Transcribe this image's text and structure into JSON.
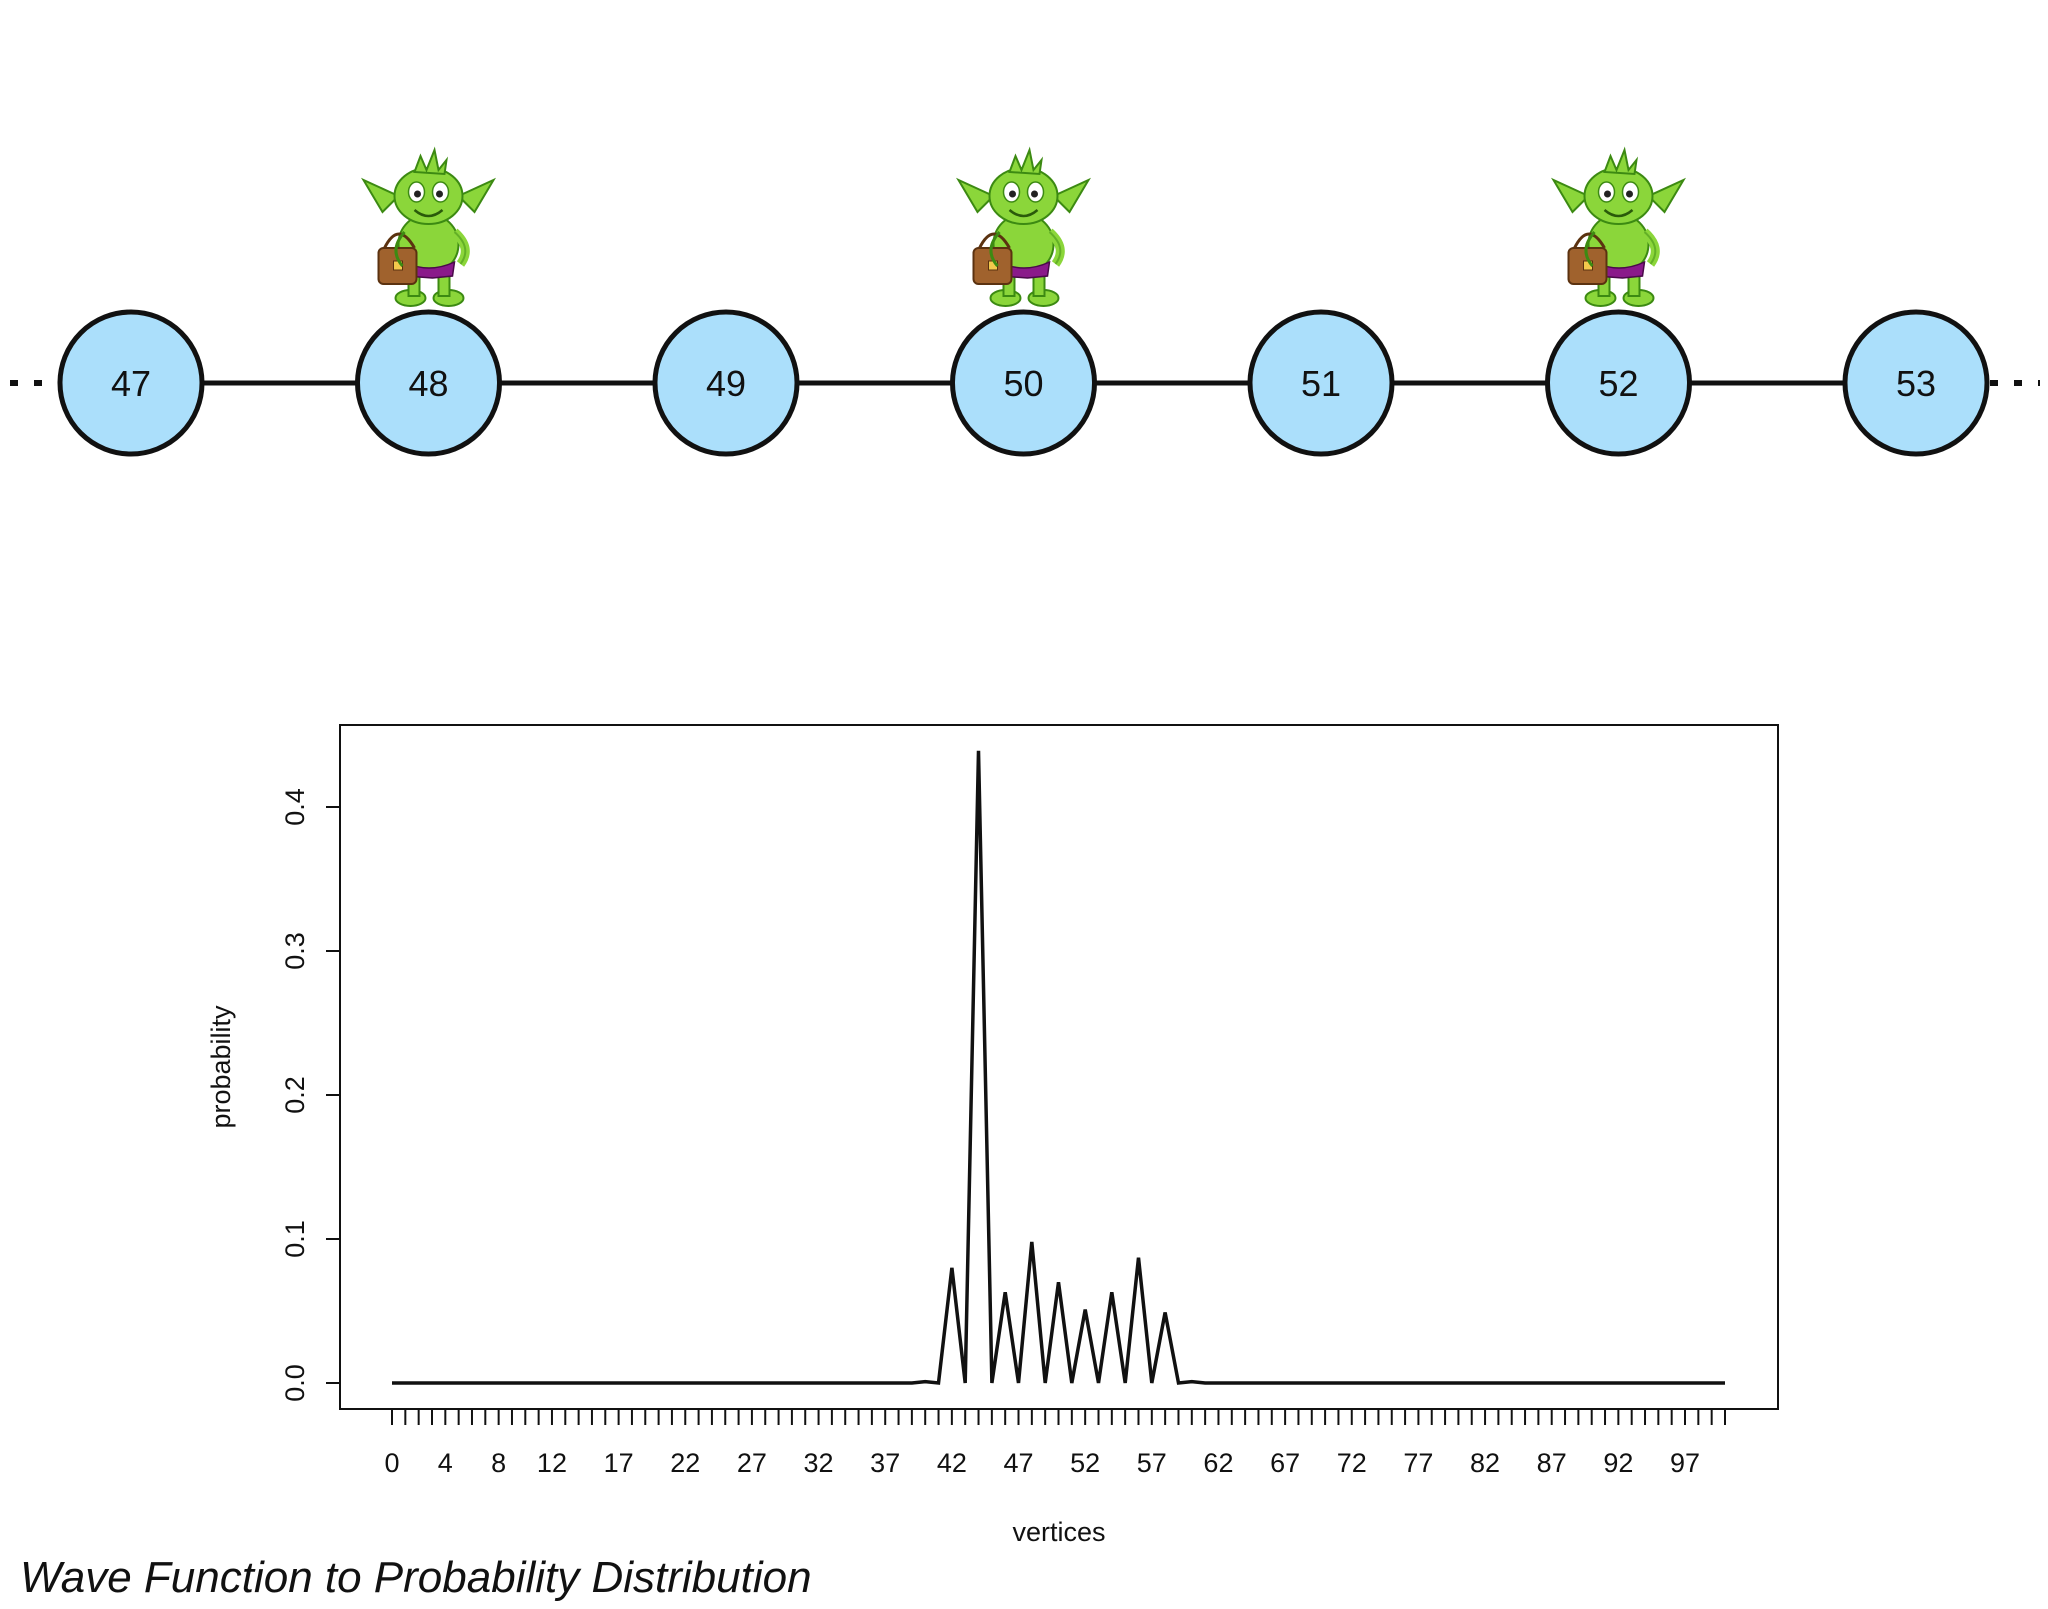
{
  "graph": {
    "nodes": [
      "47",
      "48",
      "49",
      "50",
      "51",
      "52",
      "53"
    ],
    "walker_nodes": [
      "48",
      "50",
      "52"
    ],
    "walker_icon": "goblin-icon",
    "node_fill": "#abdffb",
    "node_stroke": "#111111",
    "continues_left": true,
    "continues_right": true
  },
  "chart_data": {
    "type": "line",
    "xlabel": "vertices",
    "ylabel": "probability",
    "xlim": [
      0,
      100
    ],
    "ylim": [
      0,
      0.44
    ],
    "x_tick_labels": [
      "0",
      "4",
      "8",
      "12",
      "17",
      "22",
      "27",
      "32",
      "37",
      "42",
      "47",
      "52",
      "57",
      "62",
      "67",
      "72",
      "77",
      "82",
      "87",
      "92",
      "97"
    ],
    "y_tick_labels": [
      "0.0",
      "0.1",
      "0.2",
      "0.3",
      "0.4"
    ],
    "series": [
      {
        "x": [
          0,
          1,
          2,
          3,
          4,
          5,
          6,
          7,
          8,
          9,
          10,
          11,
          12,
          13,
          14,
          15,
          16,
          17,
          18,
          19,
          20,
          21,
          22,
          23,
          24,
          25,
          26,
          27,
          28,
          29,
          30,
          31,
          32,
          33,
          34,
          35,
          36,
          37,
          38,
          39,
          40,
          41,
          42,
          43,
          44,
          45,
          46,
          47,
          48,
          49,
          50,
          51,
          52,
          53,
          54,
          55,
          56,
          57,
          58,
          59,
          60,
          61,
          62,
          63,
          64,
          65,
          66,
          67,
          68,
          69,
          70,
          71,
          72,
          73,
          74,
          75,
          76,
          77,
          78,
          79,
          80,
          81,
          82,
          83,
          84,
          85,
          86,
          87,
          88,
          89,
          90,
          91,
          92,
          93,
          94,
          95,
          96,
          97,
          98,
          99,
          100
        ],
        "y": [
          0,
          0,
          0,
          0,
          0,
          0,
          0,
          0,
          0,
          0,
          0,
          0,
          0,
          0,
          0,
          0,
          0,
          0,
          0,
          0,
          0,
          0,
          0,
          0,
          0,
          0,
          0,
          0,
          0,
          0,
          0,
          0,
          0,
          0,
          0,
          0,
          0,
          0,
          0,
          0,
          0.001,
          0,
          0.08,
          0,
          0.439,
          0,
          0.063,
          0,
          0.098,
          0,
          0.07,
          0,
          0.051,
          0,
          0.063,
          0,
          0.087,
          0,
          0.049,
          0,
          0.001,
          0,
          0,
          0,
          0,
          0,
          0,
          0,
          0,
          0,
          0,
          0,
          0,
          0,
          0,
          0,
          0,
          0,
          0,
          0,
          0,
          0,
          0,
          0,
          0,
          0,
          0,
          0,
          0,
          0,
          0,
          0,
          0,
          0,
          0,
          0,
          0,
          0,
          0,
          0,
          0
        ]
      }
    ]
  },
  "caption": "Wave Function to Probability Distribution"
}
